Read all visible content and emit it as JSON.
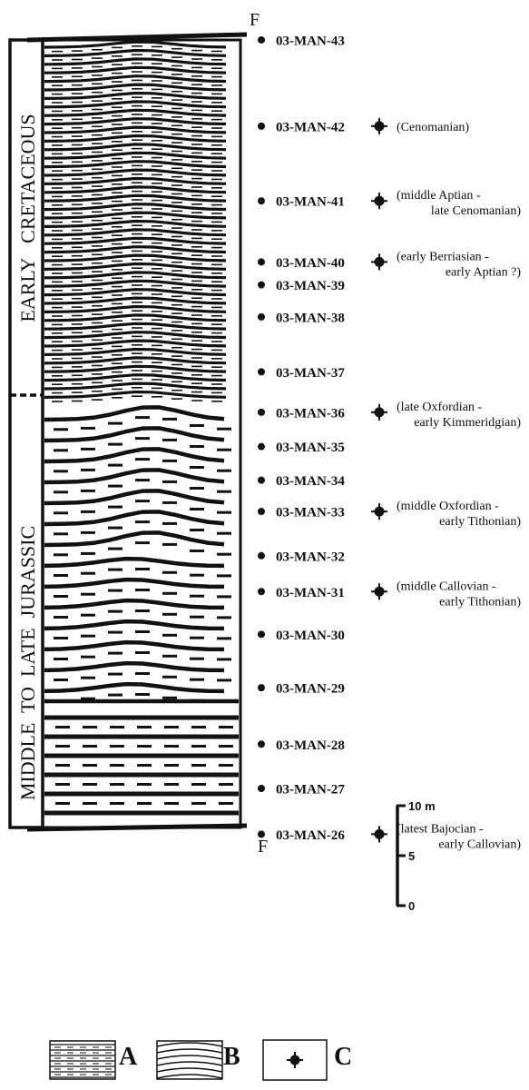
{
  "fault_label_top": "F",
  "fault_label_bottom": "F",
  "age_columns": [
    {
      "label": "EARLY   CRETACEOUS"
    },
    {
      "label": "MIDDLE  TO  LATE  JURASSIC"
    }
  ],
  "samples": [
    {
      "id": "03-MAN-43",
      "fossil": false,
      "age_lines": []
    },
    {
      "id": "03-MAN-42",
      "fossil": true,
      "age_lines": [
        "(Cenomanian)"
      ]
    },
    {
      "id": "03-MAN-41",
      "fossil": true,
      "age_lines": [
        "(middle Aptian -",
        "late Cenomanian)"
      ]
    },
    {
      "id": "03-MAN-40",
      "fossil": true,
      "age_lines": [
        "(early Berriasian -",
        "early Aptian ?)"
      ]
    },
    {
      "id": "03-MAN-39",
      "fossil": false,
      "age_lines": []
    },
    {
      "id": "03-MAN-38",
      "fossil": false,
      "age_lines": []
    },
    {
      "id": "03-MAN-37",
      "fossil": false,
      "age_lines": []
    },
    {
      "id": "03-MAN-36",
      "fossil": true,
      "age_lines": [
        "(late Oxfordian -",
        "early Kimmeridgian)"
      ]
    },
    {
      "id": "03-MAN-35",
      "fossil": false,
      "age_lines": []
    },
    {
      "id": "03-MAN-34",
      "fossil": false,
      "age_lines": []
    },
    {
      "id": "03-MAN-33",
      "fossil": true,
      "age_lines": [
        "(middle Oxfordian -",
        "early Tithonian)"
      ]
    },
    {
      "id": "03-MAN-32",
      "fossil": false,
      "age_lines": []
    },
    {
      "id": "03-MAN-31",
      "fossil": true,
      "age_lines": [
        "(middle Callovian -",
        "early Tithonian)"
      ]
    },
    {
      "id": "03-MAN-30",
      "fossil": false,
      "age_lines": []
    },
    {
      "id": "03-MAN-29",
      "fossil": false,
      "age_lines": []
    },
    {
      "id": "03-MAN-28",
      "fossil": false,
      "age_lines": []
    },
    {
      "id": "03-MAN-27",
      "fossil": false,
      "age_lines": []
    },
    {
      "id": "03-MAN-26",
      "fossil": true,
      "age_lines": [
        "(latest Bajocian -",
        "early Callovian)"
      ]
    }
  ],
  "scale_bar": {
    "ticks": [
      {
        "value": 10,
        "label": "10 m"
      },
      {
        "value": 5,
        "label": "5"
      },
      {
        "value": 0,
        "label": "0"
      }
    ]
  },
  "legend": [
    {
      "key": "A",
      "pattern": "parallel-bedded"
    },
    {
      "key": "B",
      "pattern": "wavy-bedded"
    },
    {
      "key": "C",
      "pattern": "fossil-symbol"
    }
  ],
  "colors": {
    "ink": "#111111",
    "paper": "#ffffff"
  }
}
